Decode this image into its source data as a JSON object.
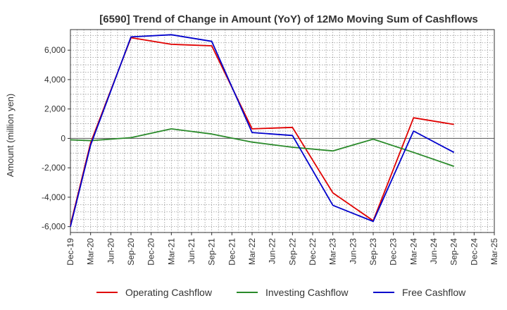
{
  "chart_data": {
    "type": "line",
    "title": "[6590]  Trend of Change in Amount (YoY) of 12Mo Moving Sum of Cashflows",
    "xlabel": "",
    "ylabel": "Amount (million yen)",
    "ylim": [
      -6400,
      7400
    ],
    "yticks": [
      6000,
      4000,
      2000,
      0,
      -2000,
      -4000,
      -6000
    ],
    "ytick_labels": [
      "6,000",
      "4,000",
      "2,000",
      "0",
      "-2,000",
      "-4,000",
      "-6,000"
    ],
    "categories": [
      "Dec-19",
      "Mar-20",
      "Jun-20",
      "Sep-20",
      "Dec-20",
      "Mar-21",
      "Jun-21",
      "Sep-21",
      "Dec-21",
      "Mar-22",
      "Jun-22",
      "Sep-22",
      "Dec-22",
      "Mar-23",
      "Jun-23",
      "Sep-23",
      "Dec-23",
      "Mar-24",
      "Jun-24",
      "Sep-24",
      "Dec-24",
      "Mar-25"
    ],
    "grid": true,
    "legend_position": "bottom",
    "series": [
      {
        "name": "Operating Cashflow",
        "color": "#e00000",
        "values": [
          -5900,
          -300,
          null,
          6850,
          null,
          6400,
          null,
          6300,
          null,
          650,
          null,
          750,
          null,
          -3700,
          null,
          -5600,
          null,
          1400,
          null,
          950,
          null,
          null
        ]
      },
      {
        "name": "Investing Cashflow",
        "color": "#2a8a2a",
        "values": [
          -100,
          -150,
          null,
          50,
          null,
          650,
          null,
          300,
          null,
          -250,
          null,
          -600,
          null,
          -850,
          null,
          -50,
          null,
          -950,
          null,
          -1900,
          null,
          null
        ]
      },
      {
        "name": "Free Cashflow",
        "color": "#0000cc",
        "values": [
          -6000,
          -450,
          null,
          6900,
          null,
          7050,
          null,
          6600,
          null,
          400,
          null,
          200,
          null,
          -4550,
          null,
          -5650,
          null,
          500,
          null,
          -950,
          null,
          null
        ]
      }
    ]
  }
}
